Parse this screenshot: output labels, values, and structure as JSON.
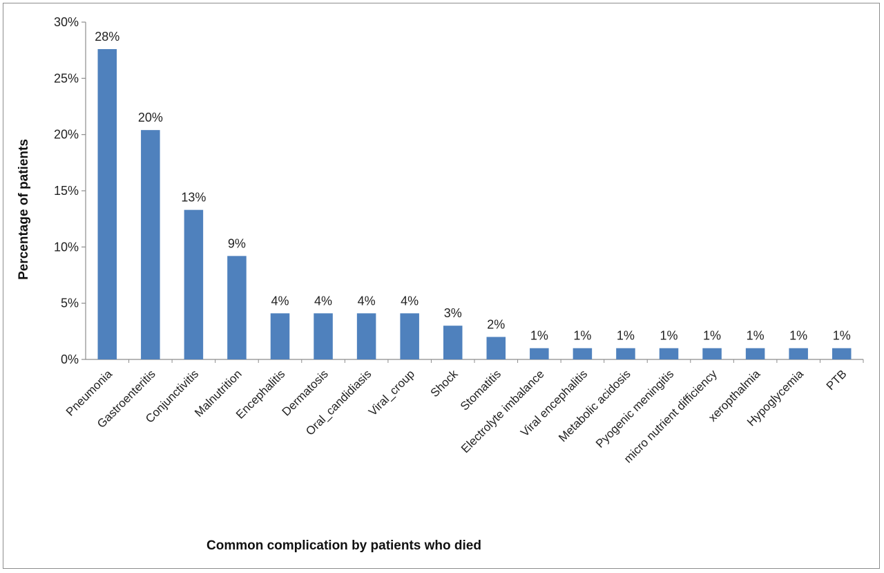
{
  "chart_data": {
    "type": "bar",
    "title": "",
    "xlabel": "Common complication by  patients who died",
    "ylabel": "Percentage of patients",
    "ylim": [
      0,
      30
    ],
    "yticks": [
      0,
      5,
      10,
      15,
      20,
      25,
      30
    ],
    "ytick_labels": [
      "0%",
      "5%",
      "10%",
      "15%",
      "20%",
      "25%",
      "30%"
    ],
    "grid": false,
    "legend": "none",
    "bar_color": "#4F81BD",
    "categories": [
      "Pneumonia",
      "Gastroenteritis",
      "Conjunctivitis",
      "Malnutrition",
      "Encephalitis",
      "Dermatosis",
      "Oral_candidiasis",
      "Viral_croup",
      "Shock",
      "Stomatitis",
      "Electrolyte imbalance",
      "Viral encephalitis",
      "Metabolic acidosis",
      "Pyogenic meningitis",
      "micro nutrient difficiency",
      "xeropthalmia",
      "Hypoglycemia",
      "PTB"
    ],
    "values": [
      27.6,
      20.4,
      13.3,
      9.2,
      4.1,
      4.1,
      4.1,
      4.1,
      3.0,
      2.0,
      1.0,
      1.0,
      1.0,
      1.0,
      1.0,
      1.0,
      1.0,
      1.0
    ],
    "data_labels": [
      "28%",
      "20%",
      "13%",
      "9%",
      "4%",
      "4%",
      "4%",
      "4%",
      "3%",
      "2%",
      "1%",
      "1%",
      "1%",
      "1%",
      "1%",
      "1%",
      "1%",
      "1%"
    ]
  }
}
